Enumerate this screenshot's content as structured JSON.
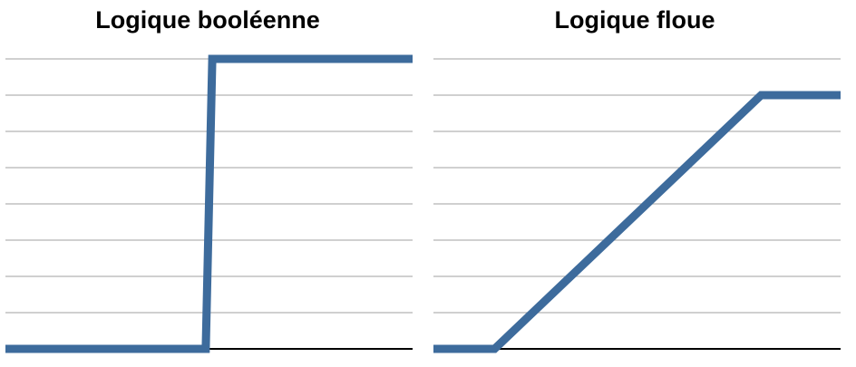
{
  "chart_data": [
    {
      "type": "line",
      "title": "Logique booléenne",
      "xlabel": "",
      "ylabel": "",
      "x": [
        0,
        0.492,
        0.508,
        1
      ],
      "y": [
        0,
        0,
        1,
        1
      ],
      "xlim": [
        0,
        1
      ],
      "ylim": [
        0,
        1
      ],
      "gridlines": 8,
      "grid": true,
      "line_color": "#3d6b9c",
      "grid_color": "#b3b3b3",
      "axis_color": "#000000"
    },
    {
      "type": "line",
      "title": "Logique floue",
      "xlabel": "",
      "ylabel": "",
      "x": [
        0,
        0.15,
        0.805,
        1
      ],
      "y": [
        0,
        0,
        0.875,
        0.875
      ],
      "xlim": [
        0,
        1
      ],
      "ylim": [
        0,
        1
      ],
      "gridlines": 8,
      "grid": true,
      "line_color": "#3d6b9c",
      "grid_color": "#b3b3b3",
      "axis_color": "#000000"
    }
  ]
}
